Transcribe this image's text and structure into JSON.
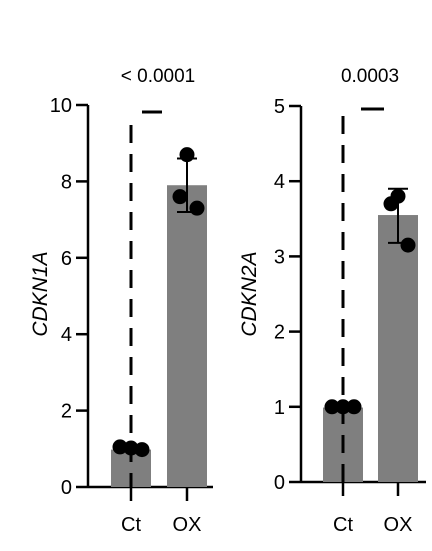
{
  "colors": {
    "bar": "#7f7f7f",
    "axis": "#000000",
    "point": "#000000",
    "background": "#ffffff"
  },
  "chart_data": [
    {
      "type": "bar",
      "ylabel": "CDKN1A",
      "ylim": [
        0,
        10
      ],
      "yticks": [
        "0",
        "2",
        "4",
        "6",
        "8",
        "10"
      ],
      "categories": [
        "Ct",
        "OX"
      ],
      "values": [
        0.98,
        7.9
      ],
      "error": [
        null,
        [
          7.2,
          8.6
        ]
      ],
      "points": [
        [
          1.05,
          1.02,
          0.98
        ],
        [
          8.7,
          7.6,
          7.3
        ]
      ],
      "p_value": "< 0.0001",
      "grid": false,
      "legend": "none",
      "error_bar_style": "dashed line on control bar, solid whisker on OX bar"
    },
    {
      "type": "bar",
      "ylabel": "CDKN2A",
      "ylim": [
        0,
        5
      ],
      "yticks": [
        "0",
        "1",
        "2",
        "3",
        "4",
        "5"
      ],
      "categories": [
        "Ct",
        "OX"
      ],
      "values": [
        0.99,
        3.55
      ],
      "error": [
        null,
        [
          3.18,
          3.9
        ]
      ],
      "points": [
        [
          1.0,
          1.0,
          1.0
        ],
        [
          3.8,
          3.7,
          3.15
        ]
      ],
      "p_value": "0.0003",
      "grid": false,
      "legend": "none",
      "error_bar_style": "dashed line on control bar, solid whisker on OX bar"
    }
  ]
}
